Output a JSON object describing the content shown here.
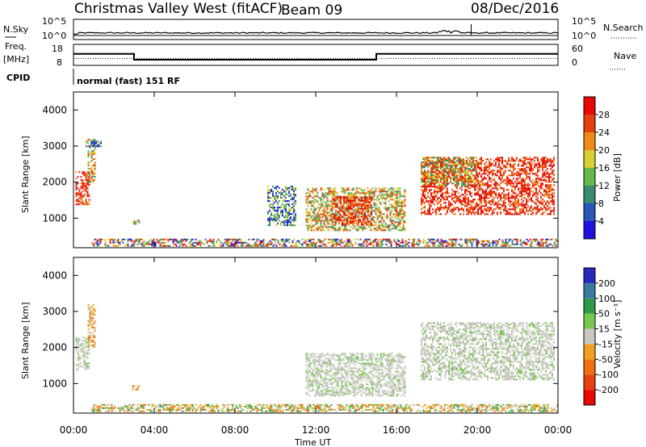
{
  "header": {
    "station": "Christmas Valley West (fitACF)",
    "beam": "Beam 09",
    "date": "08/Dec/2016"
  },
  "summary_labels": {
    "nsky": "N.Sky",
    "nsky_hi": "10^5",
    "nsky_lo": "10^0",
    "nsearch": "N.Search",
    "nsearch_hi": "10^5",
    "nsearch_lo": "10^0",
    "freq_line1": "Freq.",
    "freq_line2": "[MHz]",
    "freq_hi": "18",
    "freq_lo": "8",
    "nave": "Nave",
    "nave_hi": "60",
    "nave_lo": "0",
    "cpid": "CPID",
    "cpid_value": "normal (fast) 151 RF"
  },
  "axes": {
    "x_label": "Time UT",
    "y_label": "Slant Range [km]",
    "x_ticks": [
      "00:00",
      "04:00",
      "08:00",
      "12:00",
      "16:00",
      "20:00",
      "00:00"
    ],
    "y_ticks": [
      "1000",
      "2000",
      "3000",
      "4000"
    ]
  },
  "power_scale": {
    "label": "Power [dB]",
    "ticks": [
      "4",
      "8",
      "12",
      "16",
      "20",
      "24",
      "28"
    ],
    "colors": [
      "#1f10e0",
      "#2a55b5",
      "#3a8a70",
      "#66b84e",
      "#d8d030",
      "#f08a18",
      "#e44010",
      "#e80808"
    ]
  },
  "velocity_scale": {
    "label": "Velocity [m s⁻¹]",
    "ticks": [
      "200",
      "100",
      "50",
      "15",
      "-15",
      "-50",
      "-100",
      "-200"
    ],
    "colors": [
      "#2828c0",
      "#3a7aa0",
      "#2f9a4a",
      "#78c850",
      "#c8c8c0",
      "#f0a020",
      "#f07010",
      "#e84010",
      "#e80808"
    ]
  },
  "chart_data": {
    "type": "heatmap",
    "x_range_hours": [
      0,
      24
    ],
    "y_range_km": [
      180,
      4500
    ],
    "grid": false,
    "freq_mhz": [
      {
        "from": 0,
        "to": 3.0,
        "value": 13.5
      },
      {
        "from": 3.0,
        "to": 15.0,
        "value": 10.7
      },
      {
        "from": 15.0,
        "to": 24,
        "value": 13.5
      }
    ],
    "nave_level": 20,
    "power_regions": [
      {
        "t0": 0.1,
        "t1": 0.8,
        "r0": 1400,
        "r1": 2300,
        "level": "high"
      },
      {
        "t0": 0.7,
        "t1": 1.1,
        "r0": 2000,
        "r1": 3200,
        "level": "mid"
      },
      {
        "t0": 0.6,
        "t1": 1.4,
        "r0": 3000,
        "r1": 3150,
        "level": "low"
      },
      {
        "t0": 2.9,
        "t1": 3.3,
        "r0": 850,
        "r1": 950,
        "level": "mid"
      },
      {
        "t0": 0.9,
        "t1": 17.2,
        "r0": 230,
        "r1": 430,
        "level": "mixed"
      },
      {
        "t0": 9.6,
        "t1": 11.0,
        "r0": 800,
        "r1": 1900,
        "level": "low"
      },
      {
        "t0": 11.5,
        "t1": 16.4,
        "r0": 650,
        "r1": 1850,
        "level": "mid"
      },
      {
        "t0": 12.8,
        "t1": 14.8,
        "r0": 800,
        "r1": 1600,
        "level": "high"
      },
      {
        "t0": 17.2,
        "t1": 23.8,
        "r0": 1100,
        "r1": 2700,
        "level": "high"
      },
      {
        "t0": 17.2,
        "t1": 20.0,
        "r0": 1900,
        "r1": 2700,
        "level": "mid"
      },
      {
        "t0": 17.3,
        "t1": 24.0,
        "r0": 230,
        "r1": 430,
        "level": "mixed"
      }
    ],
    "velocity_regions": [
      {
        "t0": 0.1,
        "t1": 0.8,
        "r0": 1400,
        "r1": 2300,
        "level": "gray"
      },
      {
        "t0": 0.7,
        "t1": 1.1,
        "r0": 2000,
        "r1": 3200,
        "level": "orange"
      },
      {
        "t0": 2.9,
        "t1": 3.3,
        "r0": 850,
        "r1": 950,
        "level": "orange"
      },
      {
        "t0": 0.9,
        "t1": 17.2,
        "r0": 230,
        "r1": 430,
        "level": "orange-green"
      },
      {
        "t0": 11.5,
        "t1": 16.4,
        "r0": 650,
        "r1": 1850,
        "level": "gray"
      },
      {
        "t0": 17.2,
        "t1": 23.8,
        "r0": 1100,
        "r1": 2700,
        "level": "gray"
      },
      {
        "t0": 17.3,
        "t1": 24.0,
        "r0": 230,
        "r1": 430,
        "level": "orange-green"
      }
    ]
  }
}
